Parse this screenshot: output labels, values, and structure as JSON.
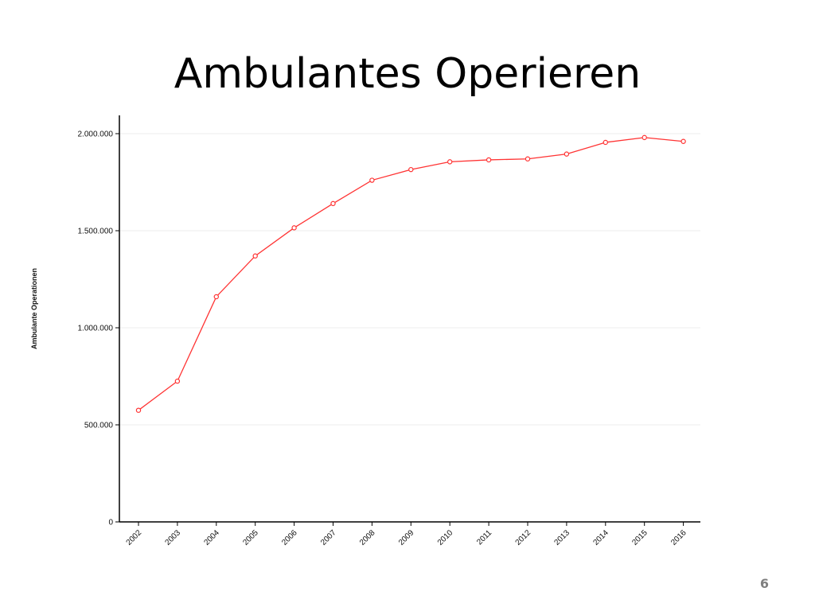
{
  "slide": {
    "title": "Ambulantes Operieren",
    "page_number": "6"
  },
  "chart_data": {
    "type": "line",
    "title": "",
    "xlabel": "",
    "ylabel": "Ambulante Operationen",
    "x": [
      "2002",
      "2003",
      "2004",
      "2005",
      "2006",
      "2007",
      "2008",
      "2009",
      "2010",
      "2011",
      "2012",
      "2013",
      "2014",
      "2015",
      "2016"
    ],
    "series": [
      {
        "values": [
          575000,
          725000,
          1160000,
          1370000,
          1515000,
          1640000,
          1760000,
          1815000,
          1855000,
          1865000,
          1870000,
          1895000,
          1955000,
          1980000,
          1960000
        ],
        "color": "#ff3333"
      }
    ],
    "ylim": [
      0,
      2000000
    ],
    "yticks": [
      0,
      500000,
      1000000,
      1500000,
      2000000
    ],
    "ytick_labels": [
      "0",
      "500.000",
      "1.000.000",
      "1.500.000",
      "2.000.000"
    ],
    "grid": true,
    "legend": "none"
  }
}
